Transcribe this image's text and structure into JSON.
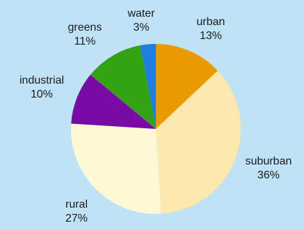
{
  "chart_data": {
    "type": "pie",
    "start_angle_deg": 0,
    "direction": "clockwise",
    "slices": [
      {
        "label": "urban",
        "value": 13,
        "value_label": "13%",
        "color": "#e89a00"
      },
      {
        "label": "suburban",
        "value": 36,
        "value_label": "36%",
        "color": "#fde8b0"
      },
      {
        "label": "rural",
        "value": 27,
        "value_label": "27%",
        "color": "#fff8d4"
      },
      {
        "label": "industrial",
        "value": 10,
        "value_label": "10%",
        "color": "#7a0aa6"
      },
      {
        "label": "greens",
        "value": 11,
        "value_label": "11%",
        "color": "#33a313"
      },
      {
        "label": "water",
        "value": 3,
        "value_label": "3%",
        "color": "#1f7fe0"
      }
    ],
    "background": "#bfe2f7"
  }
}
